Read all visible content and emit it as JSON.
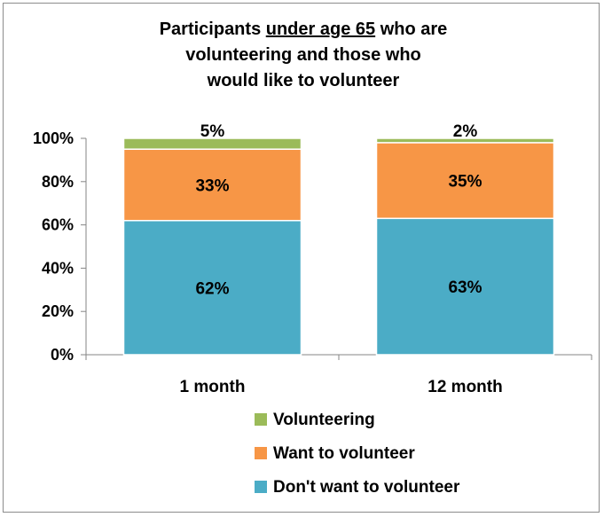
{
  "chart_data": {
    "type": "bar",
    "stacked": true,
    "title_lines": [
      [
        "Participants ",
        "under age 65",
        " who are"
      ],
      [
        "volunteering and those who"
      ],
      [
        "would like to volunteer"
      ]
    ],
    "categories": [
      "1 month",
      "12 month"
    ],
    "series": [
      {
        "name": "Don't want to volunteer",
        "values": [
          62,
          63
        ],
        "labels": [
          "62%",
          "63%"
        ],
        "color": "#4bacc6"
      },
      {
        "name": "Want to volunteer",
        "values": [
          33,
          35
        ],
        "labels": [
          "33%",
          "35%"
        ],
        "color": "#f79646"
      },
      {
        "name": "Volunteering",
        "values": [
          5,
          2
        ],
        "labels": [
          "5%",
          "2%"
        ],
        "color": "#9bbb59"
      }
    ],
    "ylim": [
      0,
      100
    ],
    "yticks": [
      0,
      20,
      40,
      60,
      80,
      100
    ],
    "ytick_labels": [
      "0%",
      "20%",
      "40%",
      "60%",
      "80%",
      "100%"
    ],
    "legend_order": [
      "Volunteering",
      "Want to volunteer",
      "Don't want to volunteer"
    ],
    "legend_position": "bottom",
    "grid": false
  }
}
